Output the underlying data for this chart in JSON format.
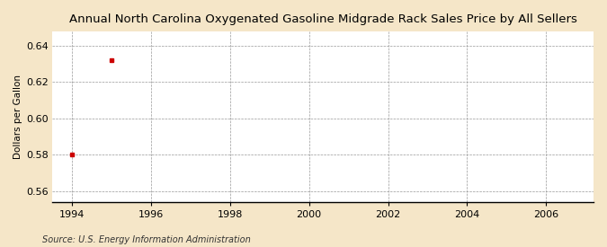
{
  "title": "Annual North Carolina Oxygenated Gasoline Midgrade Rack Sales Price by All Sellers",
  "ylabel": "Dollars per Gallon",
  "source": "Source: U.S. Energy Information Administration",
  "data_x": [
    1994,
    1995
  ],
  "data_y": [
    0.58,
    0.632
  ],
  "marker_color": "#cc0000",
  "marker_style": "s",
  "marker_size": 3,
  "xlim": [
    1993.5,
    2007.2
  ],
  "ylim": [
    0.554,
    0.648
  ],
  "xticks": [
    1994,
    1996,
    1998,
    2000,
    2002,
    2004,
    2006
  ],
  "yticks": [
    0.56,
    0.58,
    0.6,
    0.62,
    0.64
  ],
  "figure_bg_color": "#f5e6c8",
  "plot_bg_color": "#ffffff",
  "grid_color": "#999999",
  "title_fontsize": 9.5,
  "label_fontsize": 7.5,
  "tick_fontsize": 8,
  "source_fontsize": 7
}
